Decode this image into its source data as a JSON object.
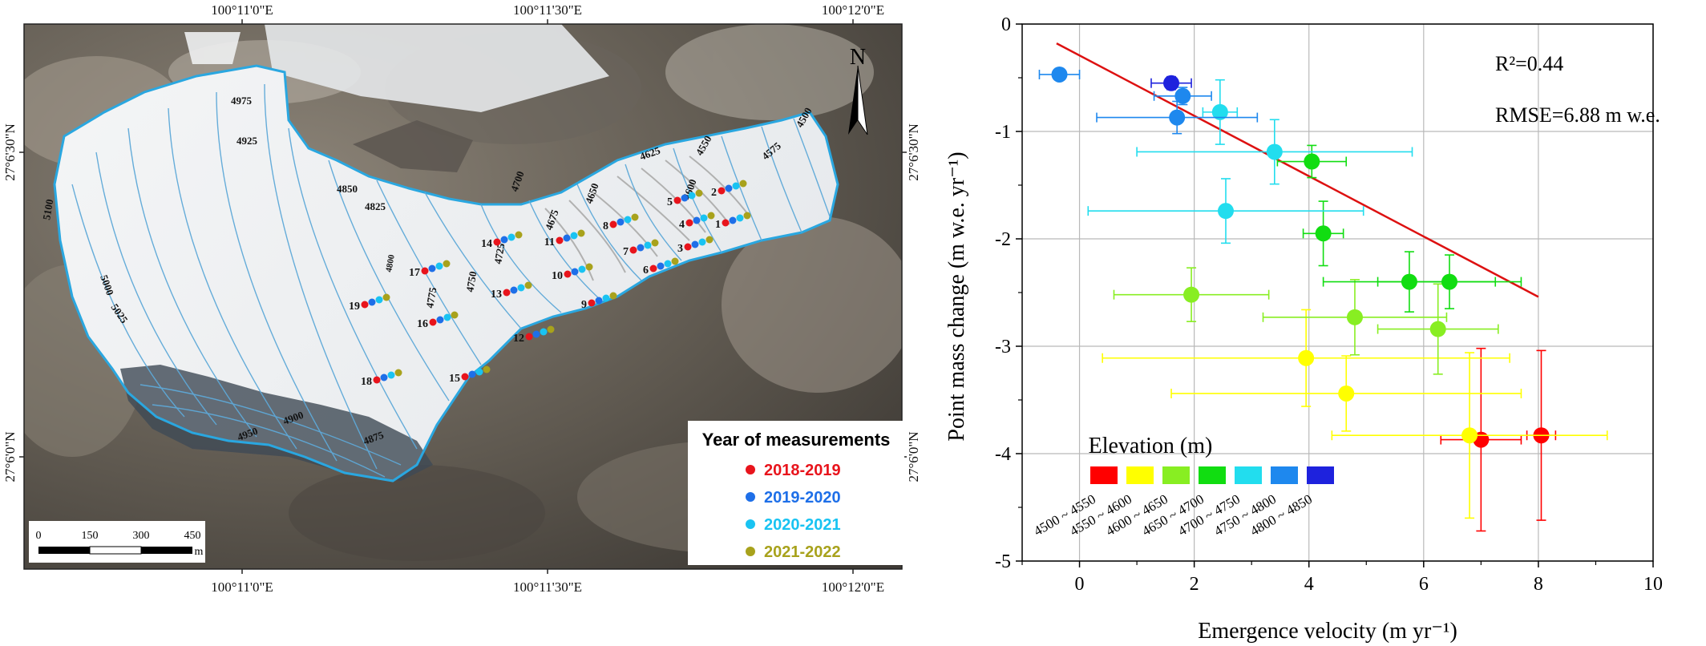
{
  "map": {
    "top_ticks": [
      "100°11'0\"E",
      "100°11'30\"E",
      "100°12'0\"E"
    ],
    "bottom_ticks": [
      "100°11'0\"E",
      "100°11'30\"E",
      "100°12'0\"E"
    ],
    "left_ticks": [
      "27°6'30\"N",
      "27°6'0\"N"
    ],
    "right_ticks": [
      "27°6'30\"N",
      "27°6'0\"N"
    ],
    "north_label": "N",
    "scale_labels": [
      "0",
      "150",
      "300",
      "450"
    ],
    "scale_unit": "m",
    "legend": {
      "title": "Year of measurements",
      "items": [
        {
          "label": "2018-2019",
          "color": "#e8141c"
        },
        {
          "label": "2019-2020",
          "color": "#1e6fe8"
        },
        {
          "label": "2020-2021",
          "color": "#19c3f2"
        },
        {
          "label": "2021-2022",
          "color": "#a8a21c"
        }
      ]
    },
    "contour_labels": [
      "4975",
      "4925",
      "4850",
      "4825",
      "4700",
      "4675",
      "4650",
      "4625",
      "4550",
      "4500",
      "4575",
      "4600",
      "4800",
      "4775",
      "4750",
      "4725",
      "5100",
      "5000",
      "5025",
      "4950",
      "4900",
      "4875"
    ],
    "stake_numbers": [
      "1",
      "2",
      "3",
      "4",
      "5",
      "6",
      "7",
      "8",
      "9",
      "10",
      "11",
      "12",
      "13",
      "14",
      "15",
      "16",
      "17",
      "18",
      "19"
    ]
  },
  "chart_data": {
    "type": "scatter",
    "xlabel": "Emergence velocity (m yr⁻¹)",
    "ylabel": "Point mass change (m w.e. yr⁻¹)",
    "xlim": [
      -1,
      10
    ],
    "ylim": [
      -5,
      0
    ],
    "x_ticks": [
      "0",
      "2",
      "4",
      "6",
      "8",
      "10"
    ],
    "y_ticks": [
      "0",
      "-1",
      "-2",
      "-3",
      "-4",
      "-5"
    ],
    "grid": true,
    "annotations": [
      "R²=0.44",
      "RMSE=6.88 m w.e."
    ],
    "fit_line": {
      "x": [
        -0.4,
        8.0
      ],
      "y": [
        -0.18,
        -2.54
      ],
      "color": "#dd1111"
    },
    "legend_title": "Elevation (m)",
    "series": [
      {
        "name": "4500 ~ 4550",
        "color": "#ff0000",
        "points": [
          {
            "x": 7.0,
            "y": -3.87,
            "xerr": 0.7,
            "yerr": 0.85
          },
          {
            "x": 8.05,
            "y": -3.83,
            "xerr": 0.25,
            "yerr": 0.79
          }
        ]
      },
      {
        "name": "4550 ~ 4600",
        "color": "#ffff00",
        "points": [
          {
            "x": 3.95,
            "y": -3.11,
            "xerr": 3.55,
            "yerr": 0.45
          },
          {
            "x": 4.65,
            "y": -3.44,
            "xerr": 3.05,
            "yerr": 0.35
          },
          {
            "x": 6.8,
            "y": -3.83,
            "xerr": 2.4,
            "yerr": 0.77
          }
        ]
      },
      {
        "name": "4600 ~ 4650",
        "color": "#88ee22",
        "points": [
          {
            "x": 1.95,
            "y": -2.52,
            "xerr": 1.35,
            "yerr": 0.25
          },
          {
            "x": 4.8,
            "y": -2.73,
            "xerr": 1.6,
            "yerr": 0.35
          },
          {
            "x": 6.25,
            "y": -2.84,
            "xerr": 1.05,
            "yerr": 0.42
          }
        ]
      },
      {
        "name": "4650 ~ 4700",
        "color": "#11dd11",
        "points": [
          {
            "x": 4.05,
            "y": -1.28,
            "xerr": 0.6,
            "yerr": 0.15
          },
          {
            "x": 4.25,
            "y": -1.95,
            "xerr": 0.35,
            "yerr": 0.3
          },
          {
            "x": 5.75,
            "y": -2.4,
            "xerr": 1.5,
            "yerr": 0.28
          },
          {
            "x": 6.45,
            "y": -2.4,
            "xerr": 1.25,
            "yerr": 0.25
          }
        ]
      },
      {
        "name": "4700 ~ 4750",
        "color": "#22ddee",
        "points": [
          {
            "x": 2.45,
            "y": -0.82,
            "xerr": 0.3,
            "yerr": 0.3
          },
          {
            "x": 3.4,
            "y": -1.19,
            "xerr": 2.4,
            "yerr": 0.3
          },
          {
            "x": 2.55,
            "y": -1.74,
            "xerr": 2.4,
            "yerr": 0.3
          }
        ]
      },
      {
        "name": "4750 ~ 4800",
        "color": "#1e88ee",
        "points": [
          {
            "x": -0.35,
            "y": -0.47,
            "xerr": 0.35,
            "yerr": 0.04
          },
          {
            "x": 1.8,
            "y": -0.67,
            "xerr": 0.5,
            "yerr": 0.08
          },
          {
            "x": 1.7,
            "y": -0.87,
            "xerr": 1.4,
            "yerr": 0.15
          }
        ]
      },
      {
        "name": "4800 ~ 4850",
        "color": "#1e22dd",
        "points": [
          {
            "x": 1.6,
            "y": -0.55,
            "xerr": 0.35,
            "yerr": 0.06
          }
        ]
      }
    ]
  }
}
